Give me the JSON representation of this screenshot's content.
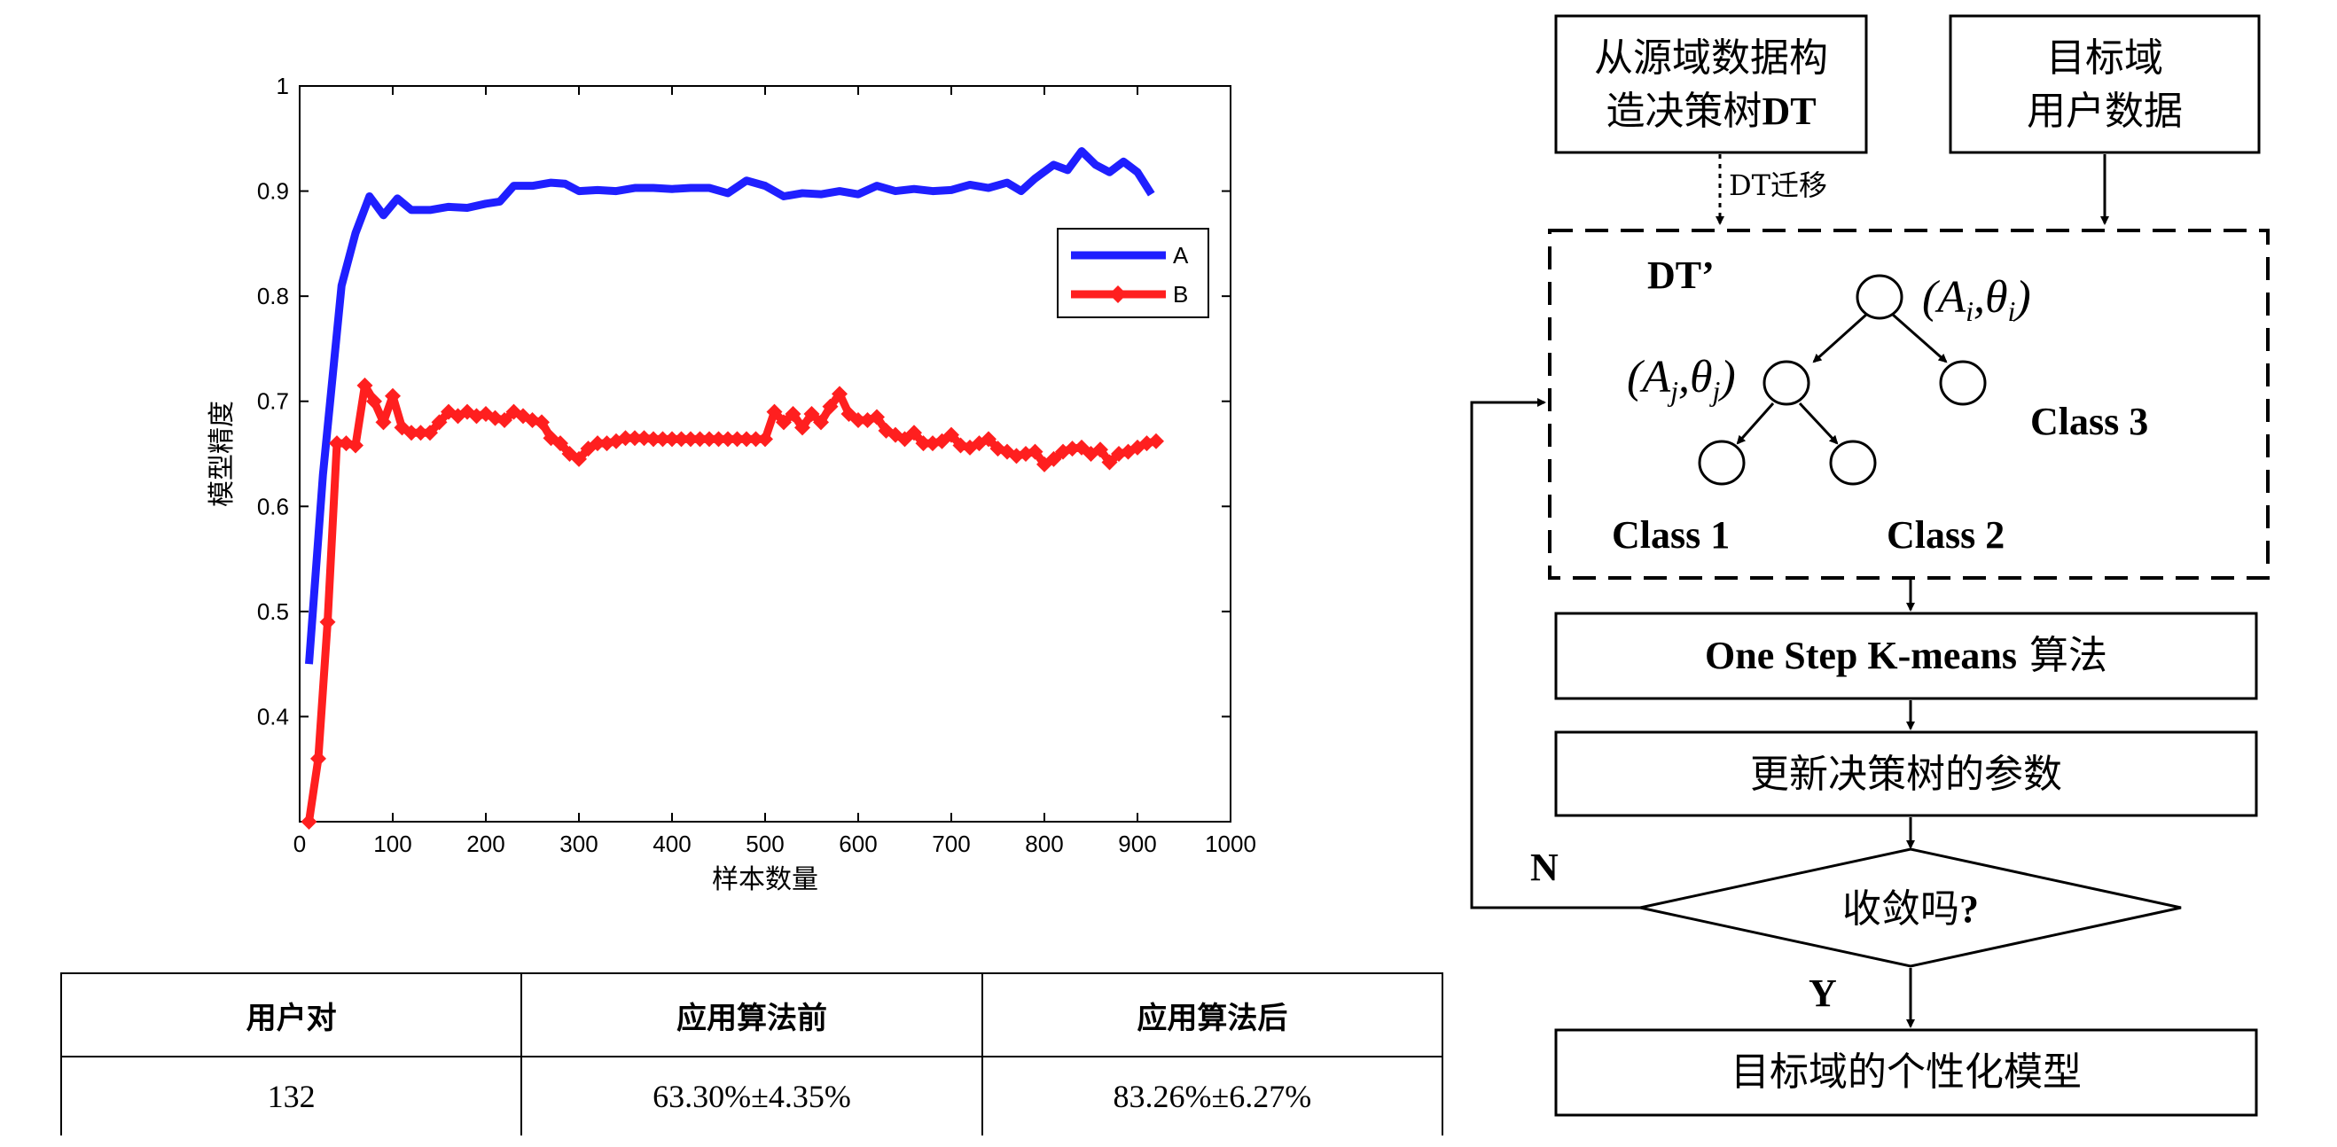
{
  "chart_data": {
    "type": "line",
    "xlabel": "样本数量",
    "ylabel": "模型精度",
    "xlim": [
      0,
      1000
    ],
    "ylim": [
      0.3,
      1.0
    ],
    "xticks": [
      0,
      100,
      200,
      300,
      400,
      500,
      600,
      700,
      800,
      900,
      1000
    ],
    "yticks": [
      0.4,
      0.5,
      0.6,
      0.7,
      0.8,
      0.9,
      1
    ],
    "ytick_labels": [
      "0.4",
      "0.5",
      "0.6",
      "0.7",
      "0.8",
      "0.9",
      "1"
    ],
    "grid": false,
    "legend_position": "top-right",
    "series": [
      {
        "name": "A",
        "color": "#1f1fff",
        "marker": "none",
        "x": [
          10,
          25,
          45,
          60,
          75,
          90,
          105,
          120,
          140,
          160,
          180,
          200,
          215,
          230,
          250,
          270,
          285,
          300,
          320,
          340,
          360,
          380,
          400,
          420,
          440,
          460,
          480,
          500,
          520,
          540,
          560,
          580,
          600,
          620,
          640,
          660,
          680,
          700,
          720,
          740,
          760,
          775,
          790,
          810,
          825,
          840,
          855,
          870,
          885,
          900,
          915
        ],
        "y": [
          0.45,
          0.63,
          0.81,
          0.86,
          0.895,
          0.877,
          0.893,
          0.882,
          0.882,
          0.885,
          0.884,
          0.888,
          0.89,
          0.905,
          0.905,
          0.908,
          0.907,
          0.9,
          0.901,
          0.9,
          0.903,
          0.903,
          0.902,
          0.903,
          0.903,
          0.898,
          0.91,
          0.905,
          0.895,
          0.898,
          0.897,
          0.9,
          0.897,
          0.905,
          0.9,
          0.902,
          0.9,
          0.901,
          0.906,
          0.903,
          0.908,
          0.9,
          0.912,
          0.925,
          0.92,
          0.938,
          0.925,
          0.918,
          0.928,
          0.918,
          0.897
        ]
      },
      {
        "name": "B",
        "color": "#ff1f1f",
        "marker": "diamond",
        "x": [
          10,
          20,
          30,
          40,
          50,
          60,
          70,
          80,
          90,
          100,
          110,
          120,
          130,
          140,
          150,
          160,
          170,
          180,
          190,
          200,
          210,
          220,
          230,
          240,
          250,
          260,
          270,
          280,
          290,
          300,
          310,
          320,
          330,
          340,
          350,
          360,
          370,
          380,
          390,
          400,
          410,
          420,
          430,
          440,
          450,
          460,
          470,
          480,
          490,
          500,
          510,
          520,
          530,
          540,
          550,
          560,
          570,
          580,
          590,
          600,
          610,
          620,
          630,
          640,
          650,
          660,
          670,
          680,
          690,
          700,
          710,
          720,
          730,
          740,
          750,
          760,
          770,
          780,
          790,
          800,
          810,
          820,
          830,
          840,
          850,
          860,
          870,
          880,
          890,
          900,
          910,
          920
        ],
        "y": [
          0.3,
          0.36,
          0.49,
          0.66,
          0.66,
          0.658,
          0.715,
          0.7,
          0.68,
          0.705,
          0.675,
          0.67,
          0.67,
          0.67,
          0.68,
          0.69,
          0.686,
          0.69,
          0.686,
          0.688,
          0.684,
          0.682,
          0.69,
          0.686,
          0.682,
          0.68,
          0.665,
          0.66,
          0.65,
          0.645,
          0.655,
          0.66,
          0.66,
          0.662,
          0.665,
          0.665,
          0.665,
          0.664,
          0.664,
          0.664,
          0.664,
          0.664,
          0.664,
          0.664,
          0.664,
          0.664,
          0.664,
          0.664,
          0.664,
          0.664,
          0.69,
          0.68,
          0.688,
          0.675,
          0.688,
          0.68,
          0.695,
          0.707,
          0.688,
          0.682,
          0.682,
          0.685,
          0.672,
          0.668,
          0.664,
          0.67,
          0.66,
          0.66,
          0.662,
          0.668,
          0.658,
          0.656,
          0.66,
          0.664,
          0.655,
          0.652,
          0.648,
          0.65,
          0.652,
          0.64,
          0.645,
          0.652,
          0.655,
          0.656,
          0.65,
          0.654,
          0.642,
          0.65,
          0.652,
          0.656,
          0.66,
          0.662
        ]
      }
    ]
  },
  "flowchart": {
    "source_box": [
      "从源域数据构",
      "造决策树"
    ],
    "source_box_bold": "DT",
    "target_box": [
      "目标域",
      "用户数据"
    ],
    "transfer_label": "DT迁移",
    "tree_label": "DT’",
    "node_param_i": "(A_i, θ_i)",
    "node_param_j": "(A_j, θ_j)",
    "class1": "Class 1",
    "class2": "Class 2",
    "class3": "Class 3",
    "step1_bold": "One Step K-means",
    "step1_suffix": " 算法",
    "step2": "更新决策树的参数",
    "decision": "收敛吗",
    "decision_mark": "?",
    "no_label": "N",
    "yes_label": "Y",
    "final_box": "目标域的个性化模型"
  },
  "table": {
    "headers": [
      "用户对",
      "应用算法前",
      "应用算法后"
    ],
    "rows": [
      [
        "132",
        "63.30%±4.35%",
        "83.26%±6.27%"
      ]
    ]
  }
}
